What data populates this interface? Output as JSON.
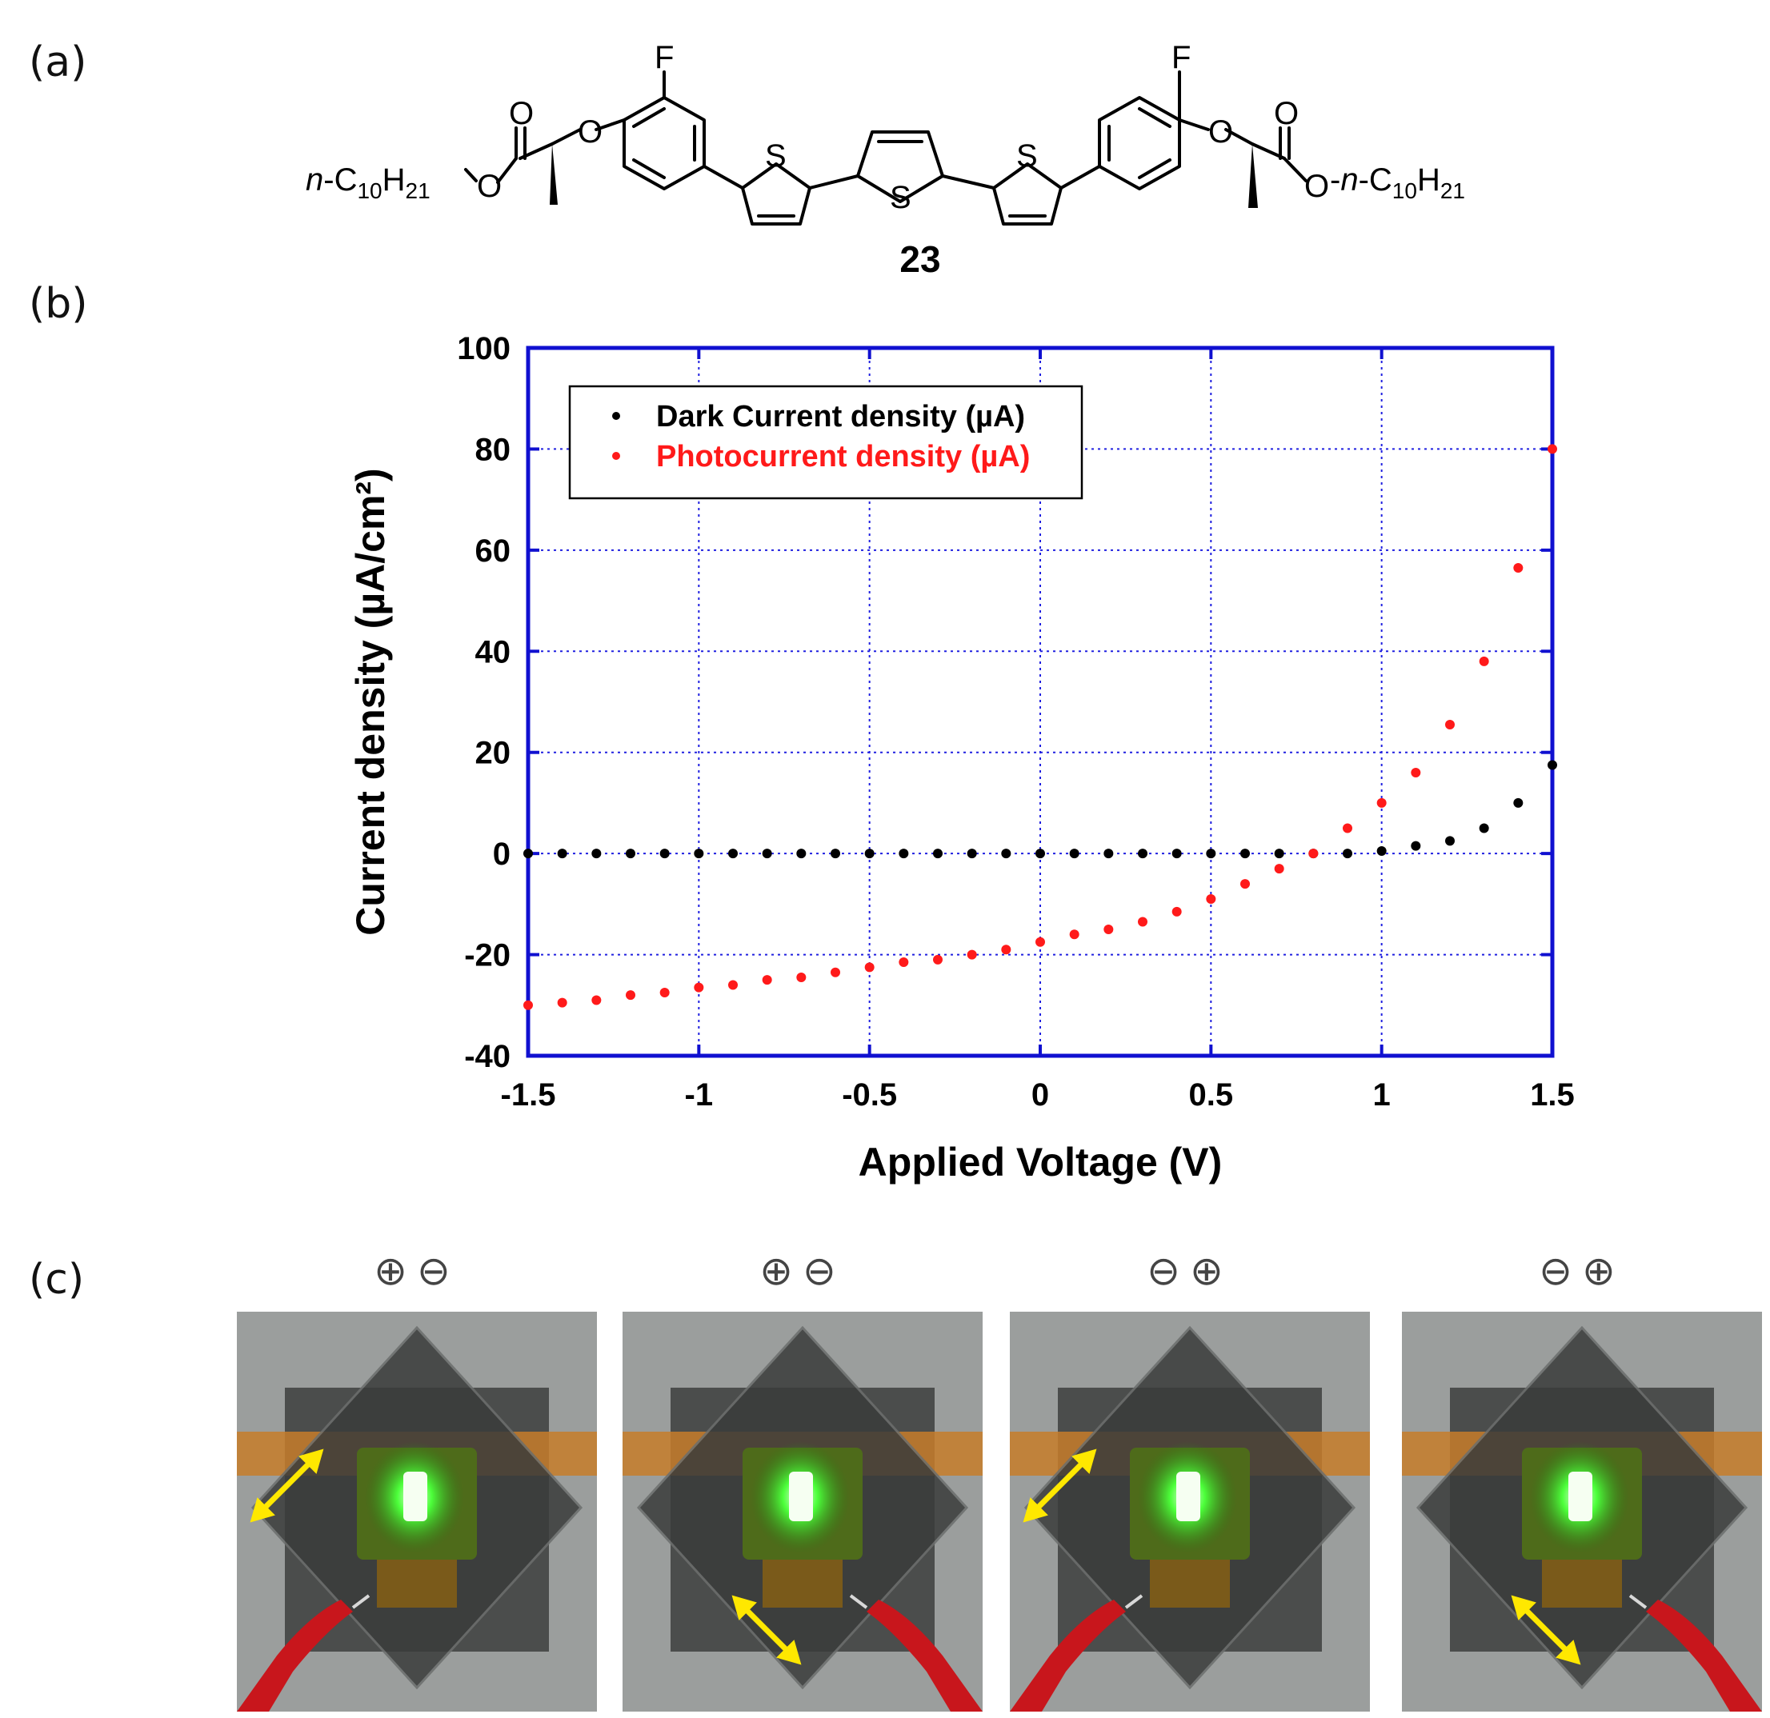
{
  "panels": {
    "a": "(a)",
    "b": "(b)",
    "c": "(c)"
  },
  "molecule": {
    "compound_number": "23",
    "left_chain_prefix": "n",
    "left_chain_body": "-C",
    "chain_c_sub": "10",
    "chain_h": "H",
    "chain_h_sub": "21",
    "right_chain_prefix": "n",
    "atom_F": "F",
    "atom_O": "O",
    "atom_S": "S"
  },
  "chart_data": {
    "type": "scatter",
    "xlabel": "Applied Voltage (V)",
    "ylabel": "Current density (µA/cm²)",
    "xlim": [
      -1.5,
      1.5
    ],
    "ylim": [
      -40,
      100
    ],
    "xticks": [
      "-1.5",
      "-1",
      "-0.5",
      "0",
      "0.5",
      "1",
      "1.5"
    ],
    "yticks": [
      "-40",
      "-20",
      "0",
      "20",
      "40",
      "60",
      "80",
      "100"
    ],
    "grid": true,
    "legend_position": "top-left",
    "series": [
      {
        "name": "Dark Current density (µA)",
        "color": "#000000",
        "x": [
          -1.5,
          -1.4,
          -1.3,
          -1.2,
          -1.1,
          -1.0,
          -0.9,
          -0.8,
          -0.7,
          -0.6,
          -0.5,
          -0.4,
          -0.3,
          -0.2,
          -0.1,
          0,
          0.1,
          0.2,
          0.3,
          0.4,
          0.5,
          0.6,
          0.7,
          0.8,
          0.9,
          1.0,
          1.1,
          1.2,
          1.3,
          1.4,
          1.5
        ],
        "y": [
          0,
          0,
          0,
          0,
          0,
          0,
          0,
          0,
          0,
          0,
          0,
          0,
          0,
          0,
          0,
          0,
          0,
          0,
          0,
          0,
          0,
          0,
          0,
          0,
          0,
          0.5,
          1.5,
          2.5,
          5,
          10,
          17.5
        ]
      },
      {
        "name": "Photocurrent density (µA)",
        "color": "#ff1a1a",
        "x": [
          -1.5,
          -1.4,
          -1.3,
          -1.2,
          -1.1,
          -1.0,
          -0.9,
          -0.8,
          -0.7,
          -0.6,
          -0.5,
          -0.4,
          -0.3,
          -0.2,
          -0.1,
          0,
          0.1,
          0.2,
          0.3,
          0.4,
          0.5,
          0.6,
          0.7,
          0.8,
          0.9,
          1.0,
          1.1,
          1.2,
          1.3,
          1.4,
          1.5
        ],
        "y": [
          -30,
          -29.5,
          -29,
          -28,
          -27.5,
          -26.5,
          -26,
          -25,
          -24.5,
          -23.5,
          -22.5,
          -21.5,
          -21,
          -20,
          -19,
          -17.5,
          -16,
          -15,
          -13.5,
          -11.5,
          -9,
          -6,
          -3,
          0,
          5,
          10,
          16,
          25.5,
          38,
          56.5,
          80
        ]
      }
    ]
  },
  "photos": [
    {
      "polarity": "⊕⊖",
      "arrow": "upper-left"
    },
    {
      "polarity": "⊕⊖",
      "arrow": "lower-center"
    },
    {
      "polarity": "⊖⊕",
      "arrow": "upper-left"
    },
    {
      "polarity": "⊖⊕",
      "arrow": "lower-center"
    }
  ],
  "colors": {
    "axis": "#1010d0",
    "grid": "#2020e0",
    "led_green": "#4cff3a",
    "clip_red": "#c8161c",
    "arrow_yellow": "#ffe800"
  }
}
